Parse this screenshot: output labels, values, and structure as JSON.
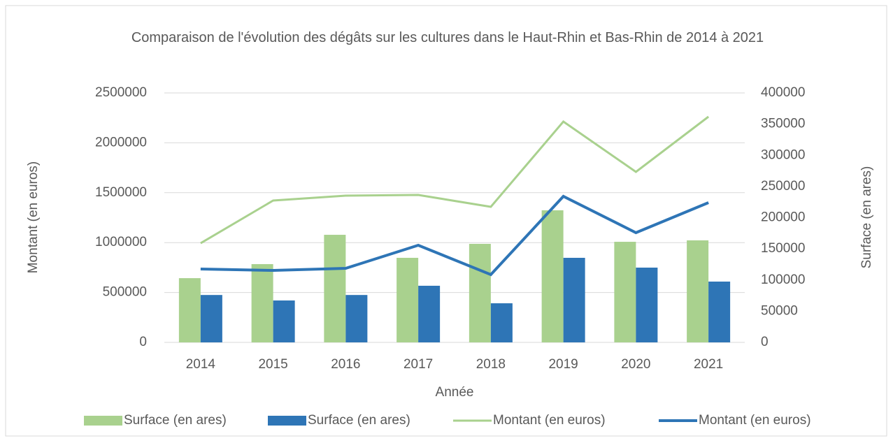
{
  "chart_data": {
    "type": "bar-line",
    "title": "Comparaison de l'évolution des dégâts sur les cultures dans le Haut-Rhin et Bas-Rhin de 2014 à 2021",
    "x_label": "Année",
    "y_label": "Montant (en euros)",
    "y2_label": "Surface (en ares)",
    "categories": [
      "2014",
      "2015",
      "2016",
      "2017",
      "2018",
      "2019",
      "2020",
      "2021"
    ],
    "ylim": [
      0,
      2500000
    ],
    "yticks": [
      0,
      500000,
      1000000,
      1500000,
      2000000,
      2500000
    ],
    "y2lim": [
      0,
      400000
    ],
    "y2ticks": [
      0,
      50000,
      100000,
      150000,
      200000,
      250000,
      300000,
      350000,
      400000
    ],
    "series": [
      {
        "name": "Surface (en ares)",
        "kind": "bar",
        "axis": "y2",
        "color": "#a9d18e",
        "values": [
          103000,
          125500,
          172500,
          135600,
          158000,
          211800,
          161300,
          163600
        ]
      },
      {
        "name": "Surface (en ares)",
        "kind": "bar",
        "axis": "y2",
        "color": "#2e75b6",
        "values": [
          76000,
          67200,
          76000,
          90800,
          62700,
          135600,
          119900,
          97500
        ]
      },
      {
        "name": "Montant (en euros)",
        "kind": "line",
        "axis": "y",
        "color": "#a9d18e",
        "values": [
          994000,
          1421600,
          1470600,
          1477600,
          1358500,
          2212900,
          1708700,
          2261900
        ]
      },
      {
        "name": "Montant (en euros)",
        "kind": "line",
        "axis": "y",
        "color": "#2e75b6",
        "values": [
          735300,
          721300,
          742300,
          973400,
          679300,
          1463600,
          1099400,
          1400600
        ]
      }
    ]
  }
}
